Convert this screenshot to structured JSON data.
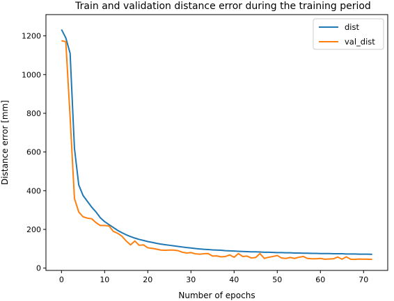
{
  "chart_data": {
    "type": "line",
    "title": "Train and validation distance error during the training period",
    "xlabel": "Number of epochs",
    "ylabel": "Distance error [mm]",
    "xlim": [
      -3.6,
      75.6
    ],
    "ylim": [
      -12,
      1310
    ],
    "xticks": [
      0,
      10,
      20,
      30,
      40,
      50,
      60,
      70
    ],
    "yticks": [
      0,
      200,
      400,
      600,
      800,
      1000,
      1200
    ],
    "grid": false,
    "legend_position": "top-right",
    "series": [
      {
        "name": "dist",
        "color": "#1f77b4",
        "x": [
          0,
          1,
          2,
          3,
          4,
          5,
          6,
          7,
          8,
          9,
          10,
          11,
          12,
          13,
          14,
          15,
          16,
          17,
          18,
          19,
          20,
          21,
          22,
          23,
          24,
          25,
          26,
          27,
          28,
          29,
          30,
          31,
          32,
          33,
          34,
          35,
          36,
          37,
          38,
          39,
          40,
          41,
          42,
          43,
          44,
          45,
          46,
          47,
          48,
          49,
          50,
          51,
          52,
          53,
          54,
          55,
          56,
          57,
          58,
          59,
          60,
          61,
          62,
          63,
          64,
          65,
          66,
          67,
          68,
          69,
          70,
          71,
          72
        ],
        "y": [
          1233,
          1190,
          1110,
          620,
          430,
          375,
          345,
          315,
          290,
          260,
          240,
          225,
          210,
          195,
          183,
          172,
          163,
          155,
          148,
          143,
          137,
          133,
          128,
          124,
          121,
          118,
          115,
          112,
          109,
          106,
          104,
          101,
          99,
          97,
          96,
          94,
          93,
          92,
          90,
          89,
          88,
          87,
          86,
          85,
          84,
          84,
          83,
          82,
          82,
          81,
          80,
          80,
          79,
          79,
          78,
          78,
          77,
          77,
          76,
          76,
          75,
          75,
          75,
          74,
          74,
          74,
          73,
          73,
          73,
          72,
          72,
          72,
          71
        ]
      },
      {
        "name": "val_dist",
        "color": "#ff7f0e",
        "x": [
          0,
          1,
          2,
          3,
          4,
          5,
          6,
          7,
          8,
          9,
          10,
          11,
          12,
          13,
          14,
          15,
          16,
          17,
          18,
          19,
          20,
          21,
          22,
          23,
          24,
          25,
          26,
          27,
          28,
          29,
          30,
          31,
          32,
          33,
          34,
          35,
          36,
          37,
          38,
          39,
          40,
          41,
          42,
          43,
          44,
          45,
          46,
          47,
          48,
          49,
          50,
          51,
          52,
          53,
          54,
          55,
          56,
          57,
          58,
          59,
          60,
          61,
          62,
          63,
          64,
          65,
          66,
          67,
          68,
          69,
          70,
          71,
          72
        ],
        "y": [
          1175,
          1170,
          780,
          360,
          290,
          265,
          258,
          255,
          235,
          220,
          220,
          218,
          190,
          180,
          165,
          140,
          120,
          140,
          118,
          120,
          105,
          102,
          98,
          93,
          92,
          93,
          93,
          90,
          82,
          78,
          80,
          74,
          72,
          74,
          75,
          62,
          63,
          58,
          60,
          68,
          56,
          75,
          60,
          62,
          52,
          55,
          75,
          50,
          56,
          60,
          65,
          52,
          50,
          55,
          50,
          56,
          60,
          50,
          48,
          48,
          50,
          46,
          47,
          48,
          57,
          46,
          58,
          46,
          45,
          47,
          46,
          46,
          45
        ]
      }
    ]
  }
}
